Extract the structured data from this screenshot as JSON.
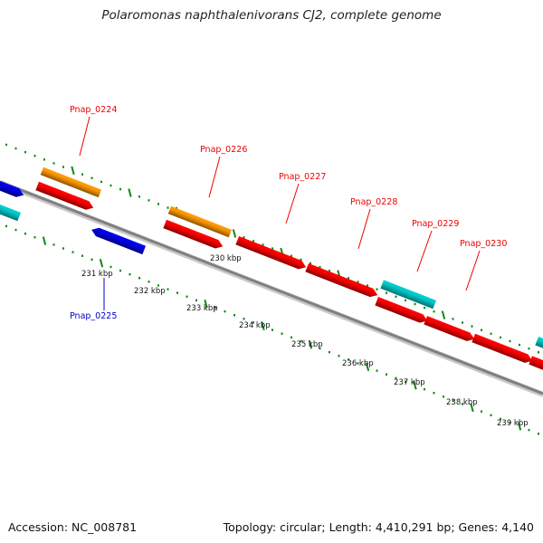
{
  "title": "Polaromonas naphthalenivorans CJ2, complete genome",
  "footer": {
    "accession": "Accession: NC_008781",
    "summary": "Topology: circular; Length: 4,410,291 bp; Genes: 4,140"
  },
  "colors": {
    "orange": "#ff9900",
    "red": "#ff0000",
    "blue": "#0000ee",
    "cyan": "#00cccc",
    "backbone": "#808080",
    "tick": "#118811",
    "label_red": "#ee0000",
    "label_blue": "#0000cc"
  },
  "scale_labels": [
    "230 kbp",
    "231 kbp",
    "232 kbp",
    "233 kbp",
    "234 kbp",
    "235 kbp",
    "236 kbp",
    "237 kbp",
    "238 kbp",
    "239 kbp"
  ],
  "gene_labels": [
    {
      "text": "Pnap_0224",
      "color": "red"
    },
    {
      "text": "Pnap_0225",
      "color": "blue"
    },
    {
      "text": "Pnap_0226",
      "color": "red"
    },
    {
      "text": "Pnap_0227",
      "color": "red"
    },
    {
      "text": "Pnap_0228",
      "color": "red"
    },
    {
      "text": "Pnap_0229",
      "color": "red"
    },
    {
      "text": "Pnap_0230",
      "color": "red"
    }
  ],
  "features": [
    {
      "color": "blue",
      "strand": "forward"
    },
    {
      "color": "cyan",
      "strand": "none"
    },
    {
      "color": "orange",
      "strand": "none"
    },
    {
      "color": "red",
      "strand": "forward"
    },
    {
      "color": "blue",
      "strand": "reverse"
    },
    {
      "color": "orange",
      "strand": "none"
    },
    {
      "color": "red",
      "strand": "forward"
    },
    {
      "color": "red",
      "strand": "forward"
    },
    {
      "color": "red",
      "strand": "forward"
    },
    {
      "color": "cyan",
      "strand": "none"
    },
    {
      "color": "red",
      "strand": "forward"
    },
    {
      "color": "red",
      "strand": "forward"
    },
    {
      "color": "red",
      "strand": "forward"
    },
    {
      "color": "cyan",
      "strand": "none"
    },
    {
      "color": "red",
      "strand": "forward"
    }
  ]
}
